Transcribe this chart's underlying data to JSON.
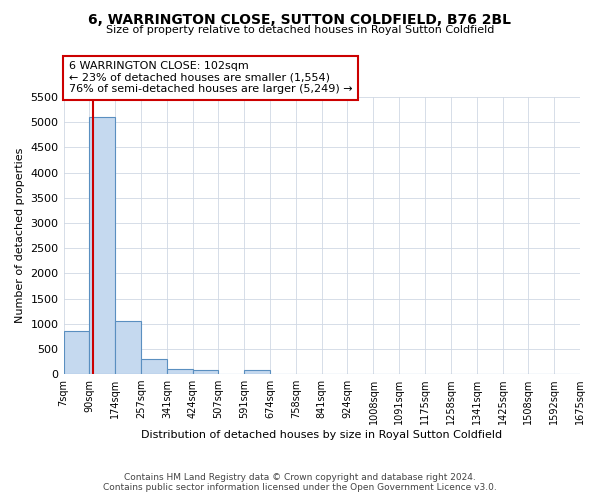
{
  "title": "6, WARRINGTON CLOSE, SUTTON COLDFIELD, B76 2BL",
  "subtitle": "Size of property relative to detached houses in Royal Sutton Coldfield",
  "xlabel": "Distribution of detached houses by size in Royal Sutton Coldfield",
  "ylabel": "Number of detached properties",
  "footer_line1": "Contains HM Land Registry data © Crown copyright and database right 2024.",
  "footer_line2": "Contains public sector information licensed under the Open Government Licence v3.0.",
  "bins": [
    7,
    90,
    174,
    257,
    341,
    424,
    507,
    591,
    674,
    758,
    841,
    924,
    1008,
    1091,
    1175,
    1258,
    1341,
    1425,
    1508,
    1592,
    1675
  ],
  "bin_labels": [
    "7sqm",
    "90sqm",
    "174sqm",
    "257sqm",
    "341sqm",
    "424sqm",
    "507sqm",
    "591sqm",
    "674sqm",
    "758sqm",
    "841sqm",
    "924sqm",
    "1008sqm",
    "1091sqm",
    "1175sqm",
    "1258sqm",
    "1341sqm",
    "1425sqm",
    "1508sqm",
    "1592sqm",
    "1675sqm"
  ],
  "bar_values": [
    850,
    5100,
    1060,
    300,
    110,
    80,
    0,
    80,
    0,
    0,
    0,
    0,
    0,
    0,
    0,
    0,
    0,
    0,
    0,
    0
  ],
  "bar_color": "#c5d9ef",
  "bar_edge_color": "#5a8fc0",
  "property_size": 102,
  "property_line_color": "#cc0000",
  "ylim": [
    0,
    5500
  ],
  "yticks": [
    0,
    500,
    1000,
    1500,
    2000,
    2500,
    3000,
    3500,
    4000,
    4500,
    5000,
    5500
  ],
  "annotation_text": "6 WARRINGTON CLOSE: 102sqm\n← 23% of detached houses are smaller (1,554)\n76% of semi-detached houses are larger (5,249) →",
  "annotation_box_color": "#ffffff",
  "annotation_box_edge_color": "#cc0000",
  "background_color": "#ffffff",
  "grid_color": "#d0d8e4"
}
